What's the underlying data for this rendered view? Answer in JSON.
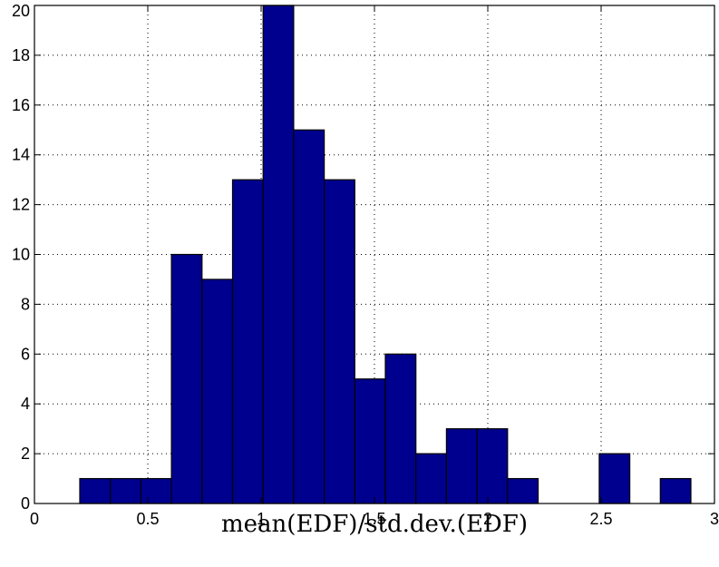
{
  "chart_data": {
    "type": "bar",
    "subtype": "histogram",
    "title": "",
    "xlabel": "mean(EDF)/std.dev.(EDF)",
    "ylabel": "",
    "xlim": [
      0,
      3
    ],
    "ylim": [
      0,
      20
    ],
    "xticks": [
      0,
      0.5,
      1,
      1.5,
      2,
      2.5,
      3
    ],
    "xtick_labels": [
      "0",
      "0.5",
      "1",
      "1.5",
      "2",
      "2.5",
      "3"
    ],
    "yticks": [
      0,
      2,
      4,
      6,
      8,
      10,
      12,
      14,
      16,
      18,
      20
    ],
    "ytick_labels": [
      "0",
      "2",
      "4",
      "6",
      "8",
      "10",
      "12",
      "14",
      "16",
      "18",
      "20"
    ],
    "grid": true,
    "grid_style": "dotted",
    "bar_color": "#00008f",
    "bar_edge_color": "#000000",
    "bin_edges": [
      0.2,
      0.3348,
      0.4696,
      0.6044,
      0.7392,
      0.874,
      1.0088,
      1.1436,
      1.2784,
      1.4132,
      1.548,
      1.6828,
      1.8176,
      1.9524,
      2.0872,
      2.222,
      2.3568,
      2.4916,
      2.6264,
      2.7612,
      2.896
    ],
    "values": [
      1,
      1,
      1,
      10,
      9,
      13,
      20,
      15,
      13,
      5,
      6,
      2,
      3,
      3,
      1,
      0,
      0,
      2,
      0,
      1
    ]
  }
}
